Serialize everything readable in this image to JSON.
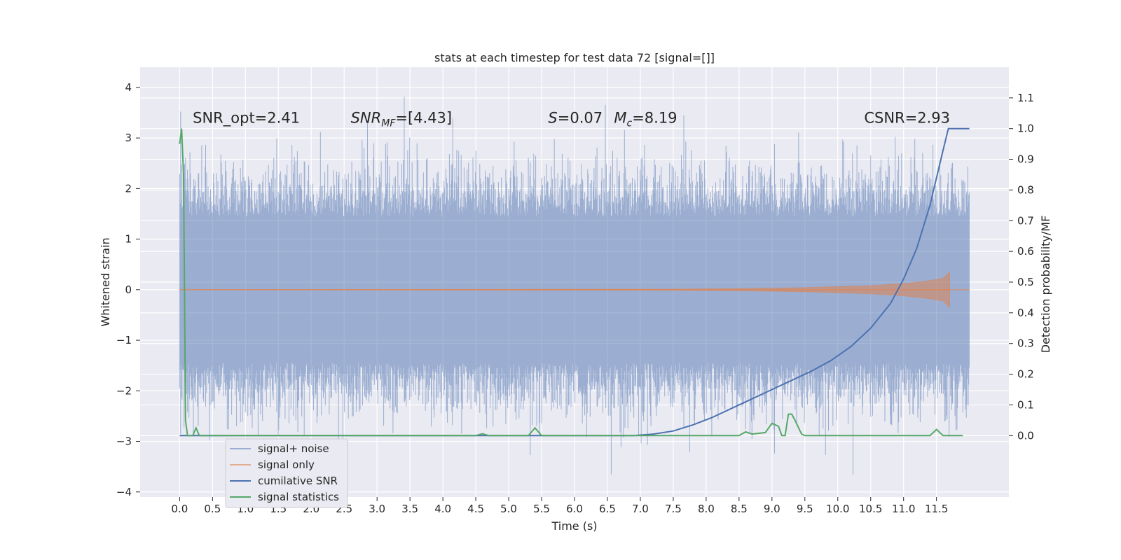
{
  "chart_data": {
    "type": "line",
    "title": "stats at each timestep for test data 72 [signal=[]]",
    "xlabel": "Time (s)",
    "ylabel_left": "Whitened strain",
    "ylabel_right": "Detection probability/MF",
    "xlim": [
      -0.6,
      12.6
    ],
    "ylim_left": [
      -4.1,
      4.4
    ],
    "ylim_right": [
      -0.2,
      1.2
    ],
    "x_ticks": [
      0.0,
      0.5,
      1.0,
      1.5,
      2.0,
      2.5,
      3.0,
      3.5,
      4.0,
      4.5,
      5.0,
      5.5,
      6.0,
      6.5,
      7.0,
      7.5,
      8.0,
      8.5,
      9.0,
      9.5,
      10.0,
      10.5,
      11.0,
      11.5
    ],
    "x_tick_labels": [
      "0.0",
      "0.5",
      "1.0",
      "1.5",
      "2.0",
      "2.5",
      "3.0",
      "3.5",
      "4.0",
      "4.5",
      "5.0",
      "5.5",
      "6.0",
      "6.5",
      "7.0",
      "7.5",
      "8.0",
      "8.5",
      "9.0",
      "9.5",
      "10.0",
      "10.5",
      "11.0",
      "11.5"
    ],
    "y_ticks_left": [
      4,
      3,
      2,
      1,
      0,
      -1,
      -2,
      -3,
      -4
    ],
    "y_tick_labels_left": [
      "4",
      "3",
      "2",
      "1",
      "0",
      "−1",
      "−2",
      "−3",
      "−4"
    ],
    "y_ticks_right": [
      1.1,
      1.0,
      0.9,
      0.8,
      0.7,
      0.6,
      0.5,
      0.4,
      0.3,
      0.2,
      0.1,
      0.0
    ],
    "y_tick_labels_right": [
      "1.1",
      "1.0",
      "0.9",
      "0.8",
      "0.7",
      "0.6",
      "0.5",
      "0.4",
      "0.3",
      "0.2",
      "0.1",
      "0.0"
    ],
    "grid": true,
    "legend_position": "lower-left",
    "annotations": [
      {
        "label": "SNR_opt=2.41",
        "x": 0.2,
        "y": 3.3
      },
      {
        "label": "SNR_MF=[4.43]",
        "x": 2.6,
        "y": 3.3
      },
      {
        "label": "S=0.07",
        "x": 5.6,
        "y": 3.3
      },
      {
        "label": "M_c=8.19",
        "x": 6.6,
        "y": 3.3
      },
      {
        "label": "CSNR=2.93",
        "x": 10.4,
        "y": 3.3
      }
    ],
    "series": [
      {
        "name": "signal+ noise",
        "axis": "left",
        "color": "#4c72b0",
        "x_range": [
          0.0,
          12.0
        ],
        "envelope_upper": 2.2,
        "envelope_lower": -2.2,
        "core_upper": 1.45,
        "core_lower": -1.45,
        "peak_max": 4.1,
        "peak_min": -3.7
      },
      {
        "name": "signal only",
        "axis": "left",
        "color": "#dd8452",
        "x": [
          0.0,
          7.5,
          8.5,
          9.5,
          10.0,
          10.5,
          11.0,
          11.3,
          11.6,
          11.7
        ],
        "amplitude": [
          0.0,
          0.01,
          0.02,
          0.04,
          0.06,
          0.08,
          0.12,
          0.16,
          0.22,
          0.35
        ]
      },
      {
        "name": "cumilative SNR",
        "axis": "right",
        "color": "#4c72b0",
        "x": [
          0.0,
          6.9,
          7.2,
          7.5,
          7.8,
          8.1,
          8.4,
          8.7,
          9.0,
          9.3,
          9.6,
          9.9,
          10.2,
          10.5,
          10.8,
          11.0,
          11.2,
          11.4,
          11.6,
          11.68,
          11.7,
          12.0
        ],
        "values": [
          0.0,
          0.0,
          0.005,
          0.015,
          0.035,
          0.06,
          0.09,
          0.12,
          0.15,
          0.18,
          0.21,
          0.245,
          0.29,
          0.35,
          0.43,
          0.51,
          0.61,
          0.75,
          0.93,
          1.0,
          1.0,
          1.0
        ]
      },
      {
        "name": "signal statistics",
        "axis": "right",
        "color": "#55a868",
        "x": [
          0.0,
          0.03,
          0.06,
          0.09,
          0.12,
          0.2,
          0.25,
          0.3,
          0.4,
          4.5,
          4.6,
          4.7,
          5.3,
          5.4,
          5.5,
          7.5,
          8.5,
          8.6,
          8.7,
          8.9,
          9.0,
          9.1,
          9.15,
          9.2,
          9.25,
          9.3,
          9.35,
          9.45,
          9.5,
          11.4,
          11.5,
          11.6,
          11.9
        ],
        "values": [
          0.95,
          1.0,
          0.85,
          0.05,
          0.0,
          0.0,
          0.025,
          0.0,
          0.0,
          0.0,
          0.006,
          0.0,
          0.0,
          0.025,
          0.0,
          0.0,
          0.0,
          0.012,
          0.005,
          0.01,
          0.04,
          0.03,
          0.0,
          0.0,
          0.07,
          0.07,
          0.05,
          0.005,
          0.0,
          0.0,
          0.02,
          0.0,
          0.0
        ]
      }
    ]
  }
}
